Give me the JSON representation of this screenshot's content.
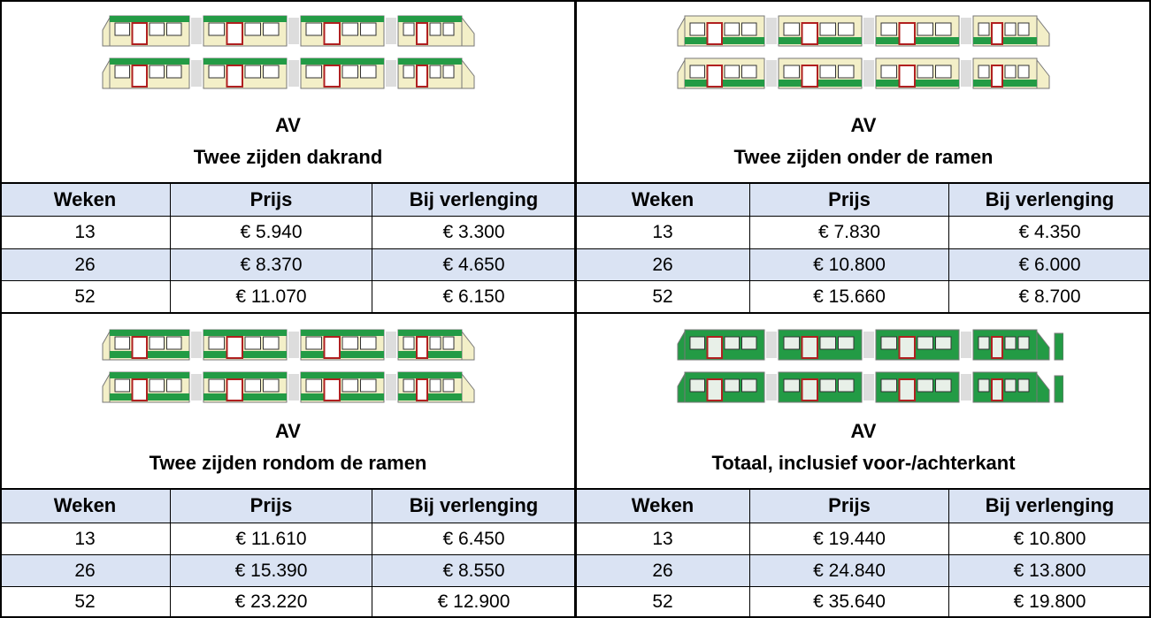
{
  "panels": [
    {
      "code": "AV",
      "title": "Twee zijden dakrand",
      "table": {
        "header": [
          "Weken",
          "Prijs",
          "Bij verlenging"
        ],
        "rows": [
          [
            "13",
            "€ 5.940",
            "€ 3.300"
          ],
          [
            "26",
            "€ 8.370",
            "€ 4.650"
          ],
          [
            "52",
            "€ 11.070",
            "€ 6.150"
          ]
        ]
      }
    },
    {
      "code": "AV",
      "title": "Twee zijden onder de ramen",
      "table": {
        "header": [
          "Weken",
          "Prijs",
          "Bij verlenging"
        ],
        "rows": [
          [
            "13",
            "€ 7.830",
            "€ 4.350"
          ],
          [
            "26",
            "€ 10.800",
            "€ 6.000"
          ],
          [
            "52",
            "€ 15.660",
            "€ 8.700"
          ]
        ]
      }
    },
    {
      "code": "AV",
      "title": "Twee zijden rondom de ramen",
      "table": {
        "header": [
          "Weken",
          "Prijs",
          "Bij verlenging"
        ],
        "rows": [
          [
            "13",
            "€ 11.610",
            "€ 6.450"
          ],
          [
            "26",
            "€ 15.390",
            "€ 8.550"
          ],
          [
            "52",
            "€ 23.220",
            "€ 12.900"
          ]
        ]
      }
    },
    {
      "code": "AV",
      "title": "Totaal, inclusief voor-/achterkant",
      "table": {
        "header": [
          "Weken",
          "Prijs",
          "Bij verlenging"
        ],
        "rows": [
          [
            "13",
            "€ 19.440",
            "€ 10.800"
          ],
          [
            "26",
            "€ 24.840",
            "€ 13.800"
          ],
          [
            "52",
            "€ 35.640",
            "€ 19.800"
          ]
        ]
      }
    }
  ]
}
